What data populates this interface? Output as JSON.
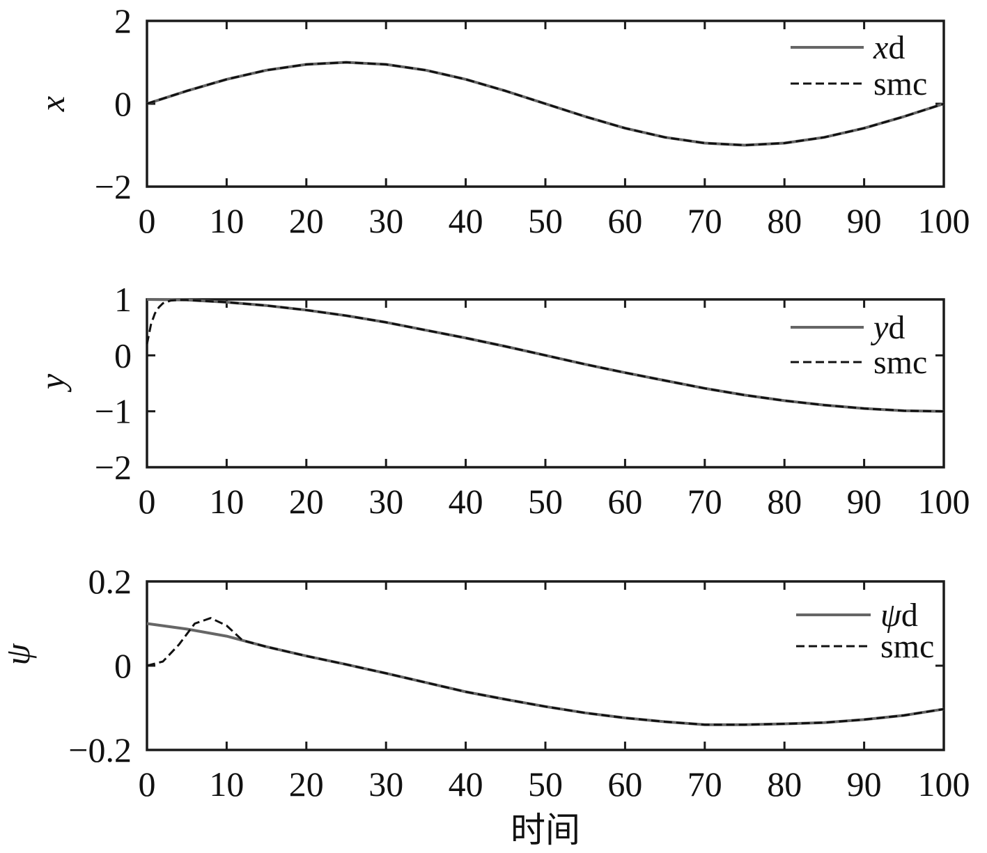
{
  "chart_data": [
    {
      "type": "line",
      "ylabel": "x",
      "xlim": [
        0,
        100
      ],
      "ylim": [
        -2,
        2
      ],
      "xticks": [
        "0",
        "10",
        "20",
        "30",
        "40",
        "50",
        "60",
        "70",
        "80",
        "90",
        "100"
      ],
      "yticks": [
        "2",
        "0",
        "−2"
      ],
      "grid": false,
      "legend_position": "top-right",
      "series": [
        {
          "name_sym": "x",
          "name_suffix": "d",
          "style": "solid",
          "color": "#666666",
          "x": [
            0,
            5,
            10,
            15,
            20,
            25,
            30,
            35,
            40,
            45,
            50,
            55,
            60,
            65,
            70,
            75,
            80,
            85,
            90,
            95,
            100
          ],
          "y": [
            0,
            0.31,
            0.59,
            0.81,
            0.95,
            1.0,
            0.95,
            0.81,
            0.59,
            0.31,
            0,
            -0.31,
            -0.59,
            -0.81,
            -0.95,
            -1.0,
            -0.95,
            -0.81,
            -0.59,
            -0.31,
            0
          ]
        },
        {
          "name": "smc",
          "style": "dashed",
          "color": "#111111",
          "x": [
            0,
            5,
            10,
            15,
            20,
            25,
            30,
            35,
            40,
            45,
            50,
            55,
            60,
            65,
            70,
            75,
            80,
            85,
            90,
            95,
            100
          ],
          "y": [
            0,
            0.31,
            0.59,
            0.81,
            0.95,
            1.0,
            0.95,
            0.81,
            0.59,
            0.31,
            0,
            -0.31,
            -0.59,
            -0.81,
            -0.95,
            -1.0,
            -0.95,
            -0.81,
            -0.59,
            -0.31,
            0
          ]
        }
      ]
    },
    {
      "type": "line",
      "ylabel": "y",
      "xlim": [
        0,
        100
      ],
      "ylim": [
        -2,
        1
      ],
      "xticks": [
        "0",
        "10",
        "20",
        "30",
        "40",
        "50",
        "60",
        "70",
        "80",
        "90",
        "100"
      ],
      "yticks": [
        "1",
        "0",
        "−1",
        "−2"
      ],
      "grid": false,
      "legend_position": "right",
      "series": [
        {
          "name_sym": "y",
          "name_suffix": "d",
          "style": "solid",
          "color": "#666666",
          "x": [
            0,
            5,
            10,
            15,
            20,
            25,
            30,
            35,
            40,
            45,
            50,
            55,
            60,
            65,
            70,
            75,
            80,
            85,
            90,
            95,
            100
          ],
          "y": [
            1.0,
            0.99,
            0.95,
            0.89,
            0.81,
            0.71,
            0.59,
            0.45,
            0.31,
            0.16,
            0,
            -0.16,
            -0.31,
            -0.45,
            -0.59,
            -0.71,
            -0.81,
            -0.89,
            -0.95,
            -0.99,
            -1.0
          ]
        },
        {
          "name": "smc",
          "style": "dashed",
          "color": "#111111",
          "x": [
            0,
            0.5,
            1,
            1.5,
            2,
            3,
            4,
            5,
            10,
            15,
            20,
            25,
            30,
            35,
            40,
            45,
            50,
            55,
            60,
            65,
            70,
            75,
            80,
            85,
            90,
            95,
            100
          ],
          "y": [
            0.2,
            0.55,
            0.75,
            0.86,
            0.93,
            0.98,
            0.99,
            0.99,
            0.95,
            0.89,
            0.81,
            0.71,
            0.59,
            0.45,
            0.31,
            0.16,
            0,
            -0.16,
            -0.31,
            -0.45,
            -0.59,
            -0.71,
            -0.81,
            -0.89,
            -0.95,
            -0.99,
            -1.0
          ]
        }
      ]
    },
    {
      "type": "line",
      "ylabel": "ψ",
      "xlabel": "时间",
      "xlim": [
        0,
        100
      ],
      "ylim": [
        -0.2,
        0.2
      ],
      "xticks": [
        "0",
        "10",
        "20",
        "30",
        "40",
        "50",
        "60",
        "70",
        "80",
        "90",
        "100"
      ],
      "yticks": [
        "0.2",
        "0",
        "−0.2"
      ],
      "grid": false,
      "legend_position": "top-right",
      "series": [
        {
          "name_sym": "ψ",
          "name_suffix": "d",
          "style": "solid",
          "color": "#666666",
          "x": [
            0,
            5,
            10,
            15,
            20,
            25,
            30,
            35,
            40,
            45,
            50,
            55,
            60,
            65,
            70,
            75,
            80,
            85,
            90,
            95,
            100
          ],
          "y": [
            0.1,
            0.087,
            0.07,
            0.045,
            0.023,
            0.003,
            -0.018,
            -0.04,
            -0.062,
            -0.08,
            -0.097,
            -0.112,
            -0.124,
            -0.133,
            -0.14,
            -0.14,
            -0.138,
            -0.135,
            -0.128,
            -0.118,
            -0.103
          ]
        },
        {
          "name": "smc",
          "style": "dashed",
          "color": "#111111",
          "x": [
            0,
            2,
            4,
            6,
            8,
            10,
            12,
            15,
            20,
            25,
            30,
            35,
            40,
            45,
            50,
            55,
            60,
            65,
            70,
            75,
            80,
            85,
            90,
            95,
            100
          ],
          "y": [
            0,
            0.01,
            0.05,
            0.1,
            0.113,
            0.095,
            0.06,
            0.045,
            0.023,
            0.003,
            -0.018,
            -0.04,
            -0.062,
            -0.08,
            -0.097,
            -0.112,
            -0.124,
            -0.133,
            -0.14,
            -0.14,
            -0.138,
            -0.135,
            -0.128,
            -0.118,
            -0.103
          ]
        }
      ]
    }
  ]
}
